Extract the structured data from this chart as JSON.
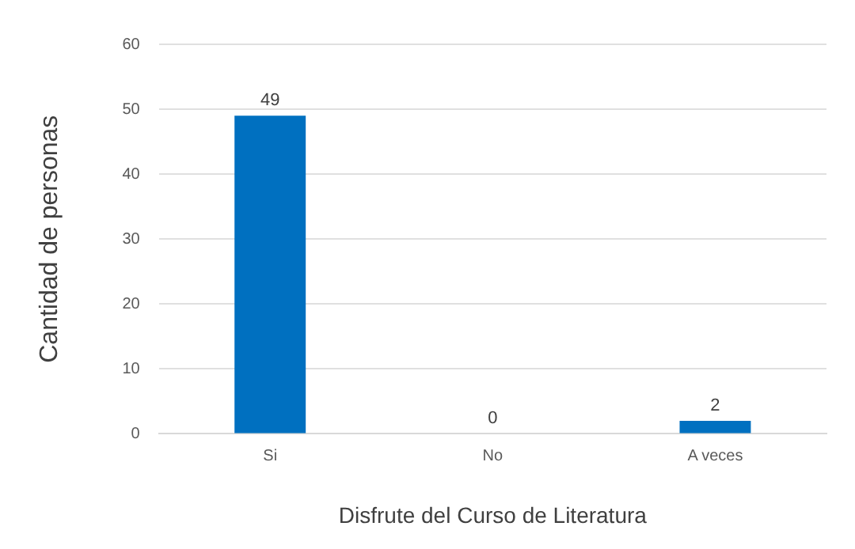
{
  "chart_data": {
    "type": "bar",
    "xlabel": "Disfrute del Curso de Literatura",
    "ylabel": "Cantidad de personas",
    "categories": [
      "Si",
      "No",
      "A veces"
    ],
    "series": [
      {
        "color": "#0070c0",
        "values": [
          49,
          0,
          2
        ]
      }
    ],
    "ylim": [
      0,
      60
    ],
    "yticks": [
      0,
      10,
      20,
      30,
      40,
      50,
      60
    ],
    "grid": "y",
    "data_labels": true,
    "legend": false
  }
}
